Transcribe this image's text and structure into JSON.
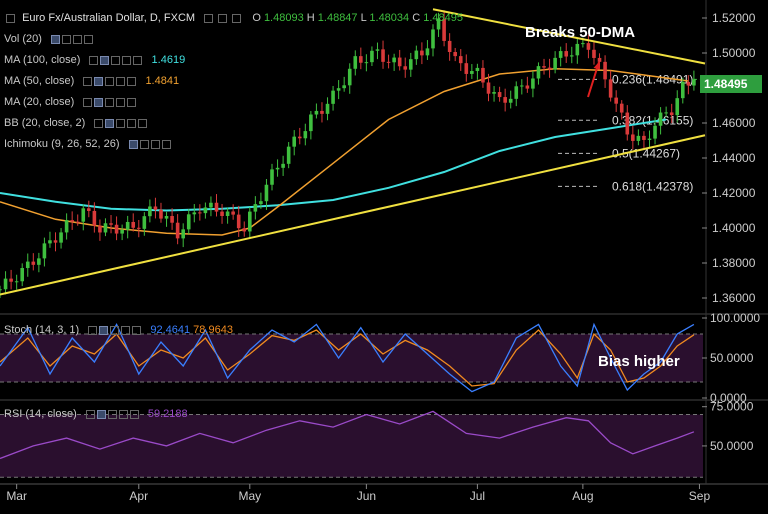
{
  "header": {
    "title": "Euro Fx/Australian Dollar, D, FXCM",
    "ohlc": {
      "o_label": "O",
      "o": "1.48093",
      "h_label": "H",
      "h": "1.48847",
      "l_label": "L",
      "l": "1.48034",
      "c_label": "C",
      "c": "1.48495"
    }
  },
  "indicators": [
    {
      "label": "Vol (20)",
      "value": "",
      "color": "#cccccc"
    },
    {
      "label": "MA (100, close)",
      "value": "1.4619",
      "color": "#40e0e0"
    },
    {
      "label": "MA (50, close)",
      "value": "1.4841",
      "color": "#f0a030"
    },
    {
      "label": "MA (20, close)",
      "value": "",
      "color": "#cccccc"
    },
    {
      "label": "BB (20, close, 2)",
      "value": "",
      "color": "#cccccc"
    },
    {
      "label": "Ichimoku (9, 26, 52, 26)",
      "value": "",
      "color": "#cccccc"
    }
  ],
  "annotations": {
    "breaks": "Breaks 50-DMA",
    "bias": "Bias higher"
  },
  "price_badge": "1.48495",
  "stoch_header": {
    "label": "Stoch (14, 3, 1)",
    "k": "92.4641",
    "d": "78.9643"
  },
  "rsi_header": {
    "label": "RSI (14, close)",
    "value": "59.2188"
  },
  "colors": {
    "up": "#3fbf3f",
    "down": "#d93a3a",
    "ma100": "#40e0e0",
    "ma50": "#f0a030",
    "trend": "#f0e040",
    "arrow": "#e02020",
    "stochK": "#3a7fff",
    "stochD": "#f08a20",
    "rsi": "#9a4ac8",
    "panel": "#2a0f2e",
    "badge": "#2e9e3e"
  },
  "chart_data": [
    {
      "type": "candlestick",
      "title": "Euro Fx/Australian Dollar, D, FXCM",
      "x_ticks": [
        "Mar",
        "Apr",
        "May",
        "Jun",
        "Jul",
        "Aug",
        "Sep"
      ],
      "y_ticks": [
        "1.52000",
        "1.50000",
        "1.48000",
        "1.46000",
        "1.44000",
        "1.42000",
        "1.40000",
        "1.38000",
        "1.36000"
      ],
      "ylim": [
        1.352,
        1.528
      ],
      "fib_levels": [
        {
          "label": "0.236(1.48491)",
          "value": 1.48491
        },
        {
          "label": "0.382(1.46155)",
          "value": 1.46155
        },
        {
          "label": "0.5(1.44267)",
          "value": 1.44267
        },
        {
          "label": "0.618(1.42378)",
          "value": 1.42378
        }
      ],
      "trendlines": [
        {
          "name": "support",
          "from": [
            0,
            1.362
          ],
          "to": [
            127,
            1.453
          ]
        },
        {
          "name": "resistance",
          "from": [
            78,
            1.525
          ],
          "to": [
            127,
            1.494
          ]
        }
      ],
      "ma100": [
        [
          0,
          1.42
        ],
        [
          10,
          1.415
        ],
        [
          20,
          1.411
        ],
        [
          30,
          1.41
        ],
        [
          40,
          1.411
        ],
        [
          50,
          1.413
        ],
        [
          60,
          1.416
        ],
        [
          70,
          1.423
        ],
        [
          80,
          1.432
        ],
        [
          90,
          1.444
        ],
        [
          100,
          1.452
        ],
        [
          110,
          1.457
        ],
        [
          120,
          1.462
        ]
      ],
      "ma50": [
        [
          0,
          1.415
        ],
        [
          10,
          1.405
        ],
        [
          20,
          1.4
        ],
        [
          30,
          1.397
        ],
        [
          40,
          1.396
        ],
        [
          45,
          1.4
        ],
        [
          50,
          1.412
        ],
        [
          60,
          1.437
        ],
        [
          70,
          1.462
        ],
        [
          80,
          1.478
        ],
        [
          90,
          1.488
        ],
        [
          100,
          1.491
        ],
        [
          110,
          1.49
        ],
        [
          117,
          1.487
        ],
        [
          124,
          1.484
        ]
      ],
      "close": [
        [
          0,
          1.365
        ],
        [
          5,
          1.378
        ],
        [
          10,
          1.395
        ],
        [
          15,
          1.41
        ],
        [
          18,
          1.4
        ],
        [
          24,
          1.4
        ],
        [
          28,
          1.412
        ],
        [
          32,
          1.397
        ],
        [
          36,
          1.412
        ],
        [
          40,
          1.41
        ],
        [
          44,
          1.4
        ],
        [
          48,
          1.425
        ],
        [
          52,
          1.445
        ],
        [
          56,
          1.462
        ],
        [
          60,
          1.475
        ],
        [
          64,
          1.495
        ],
        [
          68,
          1.5
        ],
        [
          72,
          1.492
        ],
        [
          76,
          1.5
        ],
        [
          79,
          1.517
        ],
        [
          82,
          1.495
        ],
        [
          86,
          1.488
        ],
        [
          90,
          1.472
        ],
        [
          94,
          1.48
        ],
        [
          98,
          1.492
        ],
        [
          102,
          1.5
        ],
        [
          106,
          1.505
        ],
        [
          110,
          1.478
        ],
        [
          113,
          1.455
        ],
        [
          116,
          1.448
        ],
        [
          118,
          1.46
        ],
        [
          121,
          1.468
        ],
        [
          123,
          1.48
        ],
        [
          125,
          1.485
        ]
      ],
      "last_close": 1.48495
    },
    {
      "type": "line",
      "title": "Stoch (14, 3, 1)",
      "y_ticks": [
        "100.0000",
        "50.0000",
        "0.0000"
      ],
      "ylim": [
        0,
        100
      ],
      "levels": [
        80,
        20
      ],
      "series": [
        {
          "name": "92.4641",
          "values": [
            [
              0,
              40
            ],
            [
              5,
              88
            ],
            [
              9,
              30
            ],
            [
              13,
              75
            ],
            [
              17,
              45
            ],
            [
              21,
              92
            ],
            [
              25,
              30
            ],
            [
              29,
              70
            ],
            [
              33,
              40
            ],
            [
              37,
              85
            ],
            [
              41,
              25
            ],
            [
              45,
              60
            ],
            [
              49,
              85
            ],
            [
              53,
              70
            ],
            [
              57,
              92
            ],
            [
              61,
              50
            ],
            [
              65,
              88
            ],
            [
              69,
              45
            ],
            [
              73,
              80
            ],
            [
              77,
              55
            ],
            [
              81,
              30
            ],
            [
              85,
              8
            ],
            [
              89,
              20
            ],
            [
              93,
              75
            ],
            [
              97,
              92
            ],
            [
              101,
              40
            ],
            [
              104,
              15
            ],
            [
              107,
              92
            ],
            [
              110,
              50
            ],
            [
              113,
              10
            ],
            [
              116,
              30
            ],
            [
              119,
              45
            ],
            [
              122,
              80
            ],
            [
              125,
              92
            ]
          ]
        },
        {
          "name": "78.9643",
          "values": [
            [
              0,
              45
            ],
            [
              5,
              75
            ],
            [
              9,
              40
            ],
            [
              13,
              65
            ],
            [
              17,
              55
            ],
            [
              21,
              80
            ],
            [
              25,
              40
            ],
            [
              29,
              60
            ],
            [
              33,
              50
            ],
            [
              37,
              75
            ],
            [
              41,
              35
            ],
            [
              45,
              55
            ],
            [
              49,
              78
            ],
            [
              53,
              72
            ],
            [
              57,
              85
            ],
            [
              61,
              60
            ],
            [
              65,
              80
            ],
            [
              69,
              55
            ],
            [
              73,
              72
            ],
            [
              77,
              60
            ],
            [
              81,
              40
            ],
            [
              85,
              15
            ],
            [
              89,
              18
            ],
            [
              93,
              60
            ],
            [
              97,
              85
            ],
            [
              101,
              55
            ],
            [
              104,
              25
            ],
            [
              107,
              80
            ],
            [
              110,
              60
            ],
            [
              113,
              20
            ],
            [
              116,
              25
            ],
            [
              119,
              40
            ],
            [
              122,
              65
            ],
            [
              125,
              79
            ]
          ]
        }
      ]
    },
    {
      "type": "line",
      "title": "RSI (14, close)",
      "y_ticks": [
        "75.0000",
        "50.0000"
      ],
      "ylim": [
        27,
        78
      ],
      "levels": [
        70,
        30
      ],
      "series": [
        {
          "name": "59.2188",
          "values": [
            [
              0,
              42
            ],
            [
              6,
              50
            ],
            [
              12,
              55
            ],
            [
              18,
              48
            ],
            [
              24,
              55
            ],
            [
              30,
              50
            ],
            [
              36,
              58
            ],
            [
              42,
              52
            ],
            [
              48,
              60
            ],
            [
              54,
              66
            ],
            [
              60,
              62
            ],
            [
              66,
              70
            ],
            [
              72,
              64
            ],
            [
              78,
              72
            ],
            [
              84,
              58
            ],
            [
              90,
              55
            ],
            [
              96,
              62
            ],
            [
              102,
              68
            ],
            [
              106,
              66
            ],
            [
              110,
              52
            ],
            [
              114,
              45
            ],
            [
              118,
              50
            ],
            [
              122,
              55
            ],
            [
              125,
              59
            ]
          ]
        }
      ]
    }
  ]
}
